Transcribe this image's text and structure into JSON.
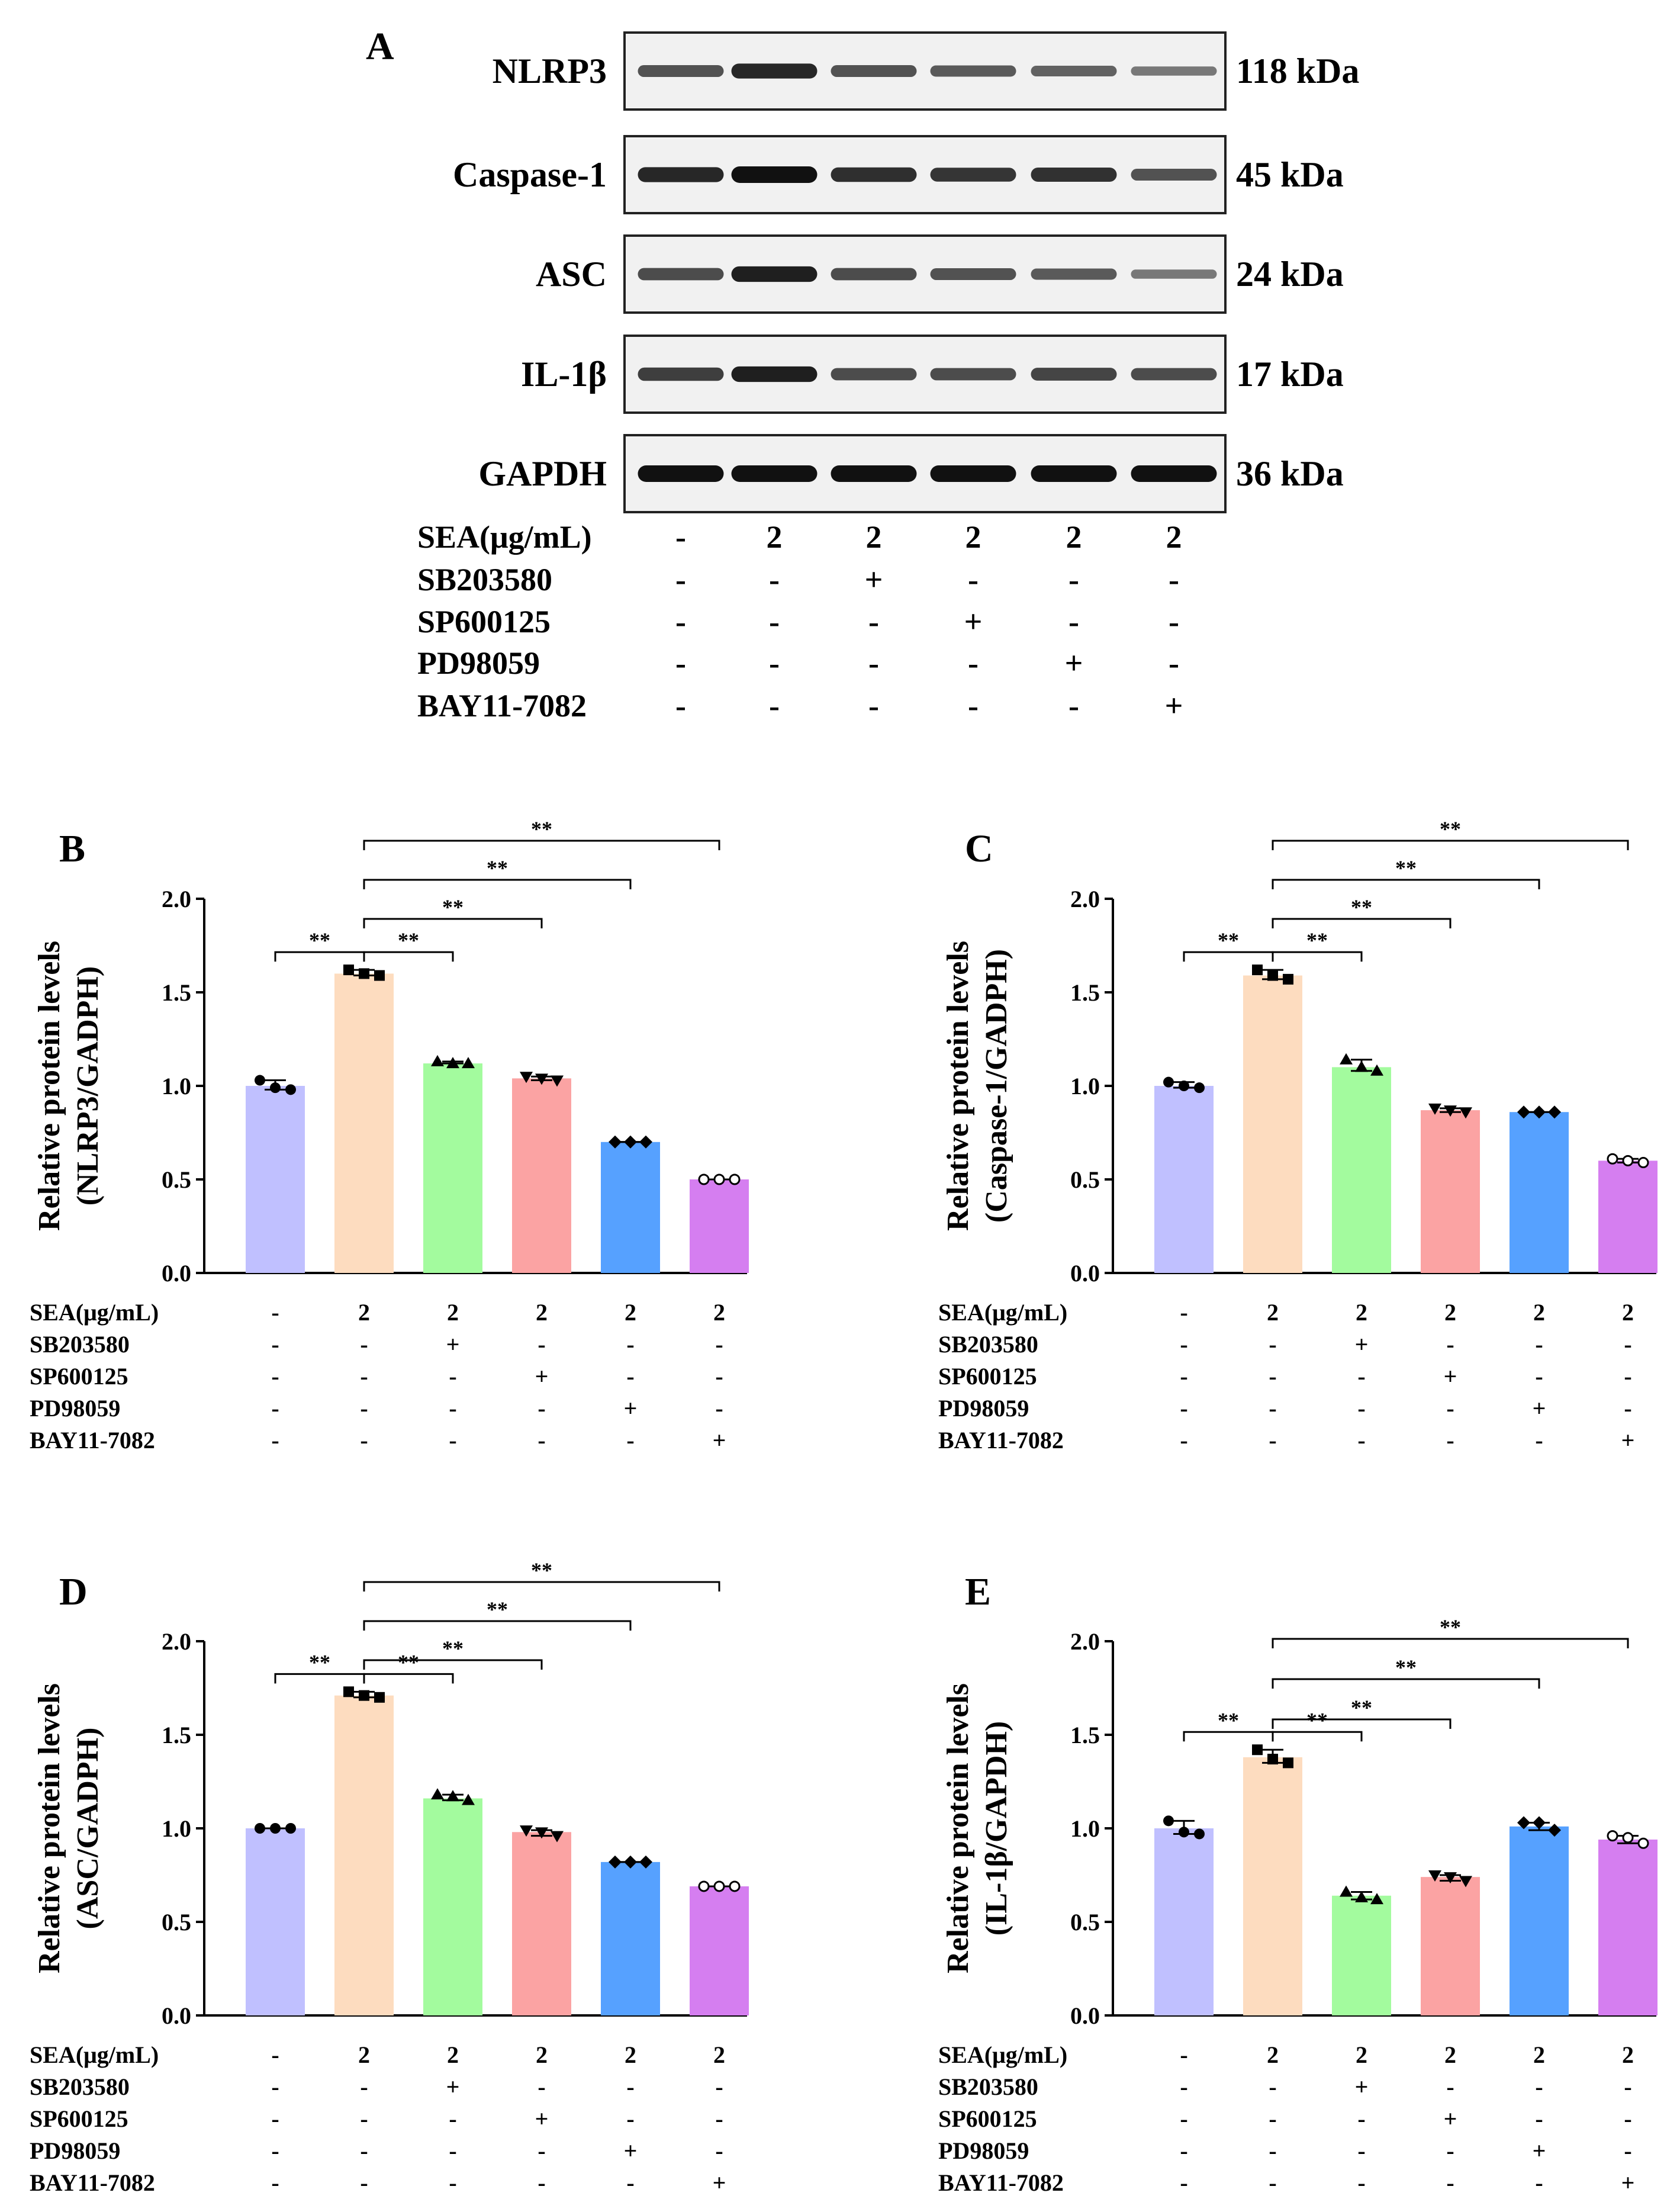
{
  "blot": {
    "letter": "A",
    "proteins": [
      {
        "name": "NLRP3",
        "kda": "118 kDa",
        "intensity": [
          0.55,
          0.85,
          0.55,
          0.5,
          0.45,
          0.3
        ]
      },
      {
        "name": "Caspase-1",
        "kda": "45 kDa",
        "intensity": [
          0.85,
          1.0,
          0.8,
          0.75,
          0.78,
          0.55
        ]
      },
      {
        "name": "ASC",
        "kda": "24 kDa",
        "intensity": [
          0.6,
          0.9,
          0.6,
          0.55,
          0.5,
          0.3
        ]
      },
      {
        "name": "IL-1β",
        "kda": "17 kDa",
        "intensity": [
          0.7,
          0.9,
          0.6,
          0.6,
          0.65,
          0.6
        ]
      },
      {
        "name": "GAPDH",
        "kda": "36 kDa",
        "intensity": [
          1.0,
          1.0,
          1.0,
          1.0,
          1.0,
          1.0
        ]
      }
    ]
  },
  "treatments": {
    "labels": [
      "SEA(μg/mL)",
      "SB203580",
      "SP600125",
      "PD98059",
      "BAY11-7082"
    ],
    "rows": [
      [
        "-",
        "2",
        "2",
        "2",
        "2",
        "2"
      ],
      [
        "-",
        "-",
        "+",
        "-",
        "-",
        "-"
      ],
      [
        "-",
        "-",
        "-",
        "+",
        "-",
        "-"
      ],
      [
        "-",
        "-",
        "-",
        "-",
        "+",
        "-"
      ],
      [
        "-",
        "-",
        "-",
        "-",
        "-",
        "+"
      ]
    ]
  },
  "colors": {
    "bars": [
      "#c0c0ff",
      "#fddcbf",
      "#a3fb9e",
      "#fba3a3",
      "#56a1ff",
      "#d57ef0"
    ]
  },
  "chart_data": [
    {
      "letter": "B",
      "type": "bar",
      "ylabel": "Relative protein levels",
      "ylabel2": "(NLRP3/GADPH)",
      "ylim": [
        0,
        2.0
      ],
      "yticks": [
        "0.0",
        "0.5",
        "1.0",
        "1.5",
        "2.0"
      ],
      "values": [
        1.0,
        1.6,
        1.12,
        1.04,
        0.7,
        0.5
      ],
      "points": [
        [
          1.03,
          0.99,
          0.98
        ],
        [
          1.62,
          1.6,
          1.59
        ],
        [
          1.13,
          1.12,
          1.12
        ],
        [
          1.05,
          1.04,
          1.03
        ],
        [
          0.7,
          0.7,
          0.7
        ],
        [
          0.5,
          0.5,
          0.5
        ]
      ],
      "markers": [
        "circle",
        "square",
        "triangle",
        "tri-down",
        "diamond",
        "open-circle"
      ],
      "sig_label": "**",
      "brackets": [
        [
          0,
          1
        ],
        [
          1,
          2
        ],
        [
          1,
          3
        ],
        [
          1,
          4
        ],
        [
          1,
          5
        ]
      ]
    },
    {
      "letter": "C",
      "type": "bar",
      "ylabel": "Relative protein levels",
      "ylabel2": "(Caspase-1/GADPH)",
      "ylim": [
        0,
        2.0
      ],
      "yticks": [
        "0.0",
        "0.5",
        "1.0",
        "1.5",
        "2.0"
      ],
      "values": [
        1.0,
        1.59,
        1.1,
        0.87,
        0.86,
        0.6
      ],
      "points": [
        [
          1.02,
          1.0,
          0.99
        ],
        [
          1.62,
          1.59,
          1.57
        ],
        [
          1.14,
          1.1,
          1.08
        ],
        [
          0.88,
          0.87,
          0.86
        ],
        [
          0.86,
          0.86,
          0.86
        ],
        [
          0.61,
          0.6,
          0.59
        ]
      ],
      "markers": [
        "circle",
        "square",
        "triangle",
        "tri-down",
        "diamond",
        "open-circle"
      ],
      "sig_label": "**",
      "brackets": [
        [
          0,
          1
        ],
        [
          1,
          2
        ],
        [
          1,
          3
        ],
        [
          1,
          4
        ],
        [
          1,
          5
        ]
      ]
    },
    {
      "letter": "D",
      "type": "bar",
      "ylabel": "Relative protein levels",
      "ylabel2": "(ASC/GADPH)",
      "ylim": [
        0,
        2.0
      ],
      "yticks": [
        "0.0",
        "0.5",
        "1.0",
        "1.5",
        "2.0"
      ],
      "values": [
        1.0,
        1.71,
        1.16,
        0.98,
        0.82,
        0.69
      ],
      "points": [
        [
          1.0,
          1.0,
          1.0
        ],
        [
          1.73,
          1.71,
          1.7
        ],
        [
          1.18,
          1.17,
          1.15
        ],
        [
          0.99,
          0.98,
          0.96
        ],
        [
          0.82,
          0.82,
          0.82
        ],
        [
          0.69,
          0.69,
          0.69
        ]
      ],
      "markers": [
        "circle",
        "square",
        "triangle",
        "tri-down",
        "diamond",
        "open-circle"
      ],
      "sig_label": "**",
      "brackets": [
        [
          0,
          1
        ],
        [
          1,
          2
        ],
        [
          1,
          3
        ],
        [
          1,
          4
        ],
        [
          1,
          5
        ]
      ]
    },
    {
      "letter": "E",
      "type": "bar",
      "ylabel": "Relative protein levels",
      "ylabel2": "(IL-1β/GAPDH)",
      "ylim": [
        0,
        2.0
      ],
      "yticks": [
        "0.0",
        "0.5",
        "1.0",
        "1.5",
        "2.0"
      ],
      "values": [
        1.0,
        1.38,
        0.64,
        0.74,
        1.01,
        0.94
      ],
      "points": [
        [
          1.04,
          0.98,
          0.97
        ],
        [
          1.42,
          1.37,
          1.35
        ],
        [
          0.66,
          0.63,
          0.62
        ],
        [
          0.75,
          0.74,
          0.72
        ],
        [
          1.03,
          1.03,
          0.99
        ],
        [
          0.96,
          0.95,
          0.92
        ]
      ],
      "markers": [
        "circle",
        "square",
        "triangle",
        "tri-down",
        "diamond",
        "open-circle"
      ],
      "sig_label": "**",
      "brackets": [
        [
          0,
          1
        ],
        [
          1,
          2
        ],
        [
          1,
          3
        ],
        [
          1,
          4
        ],
        [
          1,
          5
        ]
      ]
    }
  ]
}
